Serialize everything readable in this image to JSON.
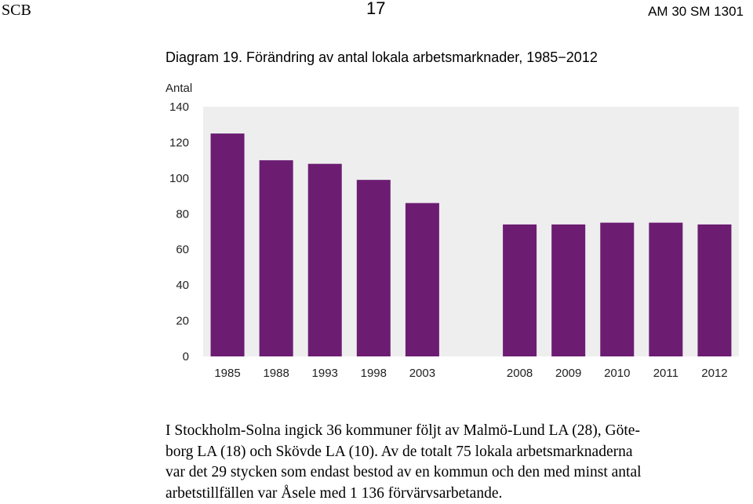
{
  "header": {
    "left": "SCB",
    "page_number": "17",
    "right": "AM 30 SM 1301"
  },
  "chart_data": {
    "type": "bar",
    "title": "Diagram 19. Förändring av antal lokala arbetsmarknader, 1985−2012",
    "ylabel": "Antal",
    "xlabel": "",
    "ylim": [
      0,
      140
    ],
    "yticks": [
      0,
      20,
      40,
      60,
      80,
      100,
      120,
      140
    ],
    "categories": [
      "1985",
      "1988",
      "1993",
      "1998",
      "2003",
      "",
      "2008",
      "2009",
      "2010",
      "2011",
      "2012"
    ],
    "values": [
      125,
      110,
      108,
      99,
      86,
      null,
      74,
      74,
      75,
      75,
      74
    ],
    "grid": false,
    "colors": {
      "bar": "#6c1d72",
      "plot_bg": "#eeeeee",
      "axis_text": "#222222"
    }
  },
  "body_text": {
    "lines": [
      "I Stockholm-Solna ingick 36 kommuner följt av Malmö-Lund LA (28), Göte-",
      "borg LA (18) och Skövde LA (10). Av de totalt 75 lokala arbetsmarknaderna",
      "var det 29 stycken som endast bestod av en kommun och den med minst antal",
      "arbetstillfällen var Åsele med 1 136 förvärvsarbetande."
    ]
  }
}
